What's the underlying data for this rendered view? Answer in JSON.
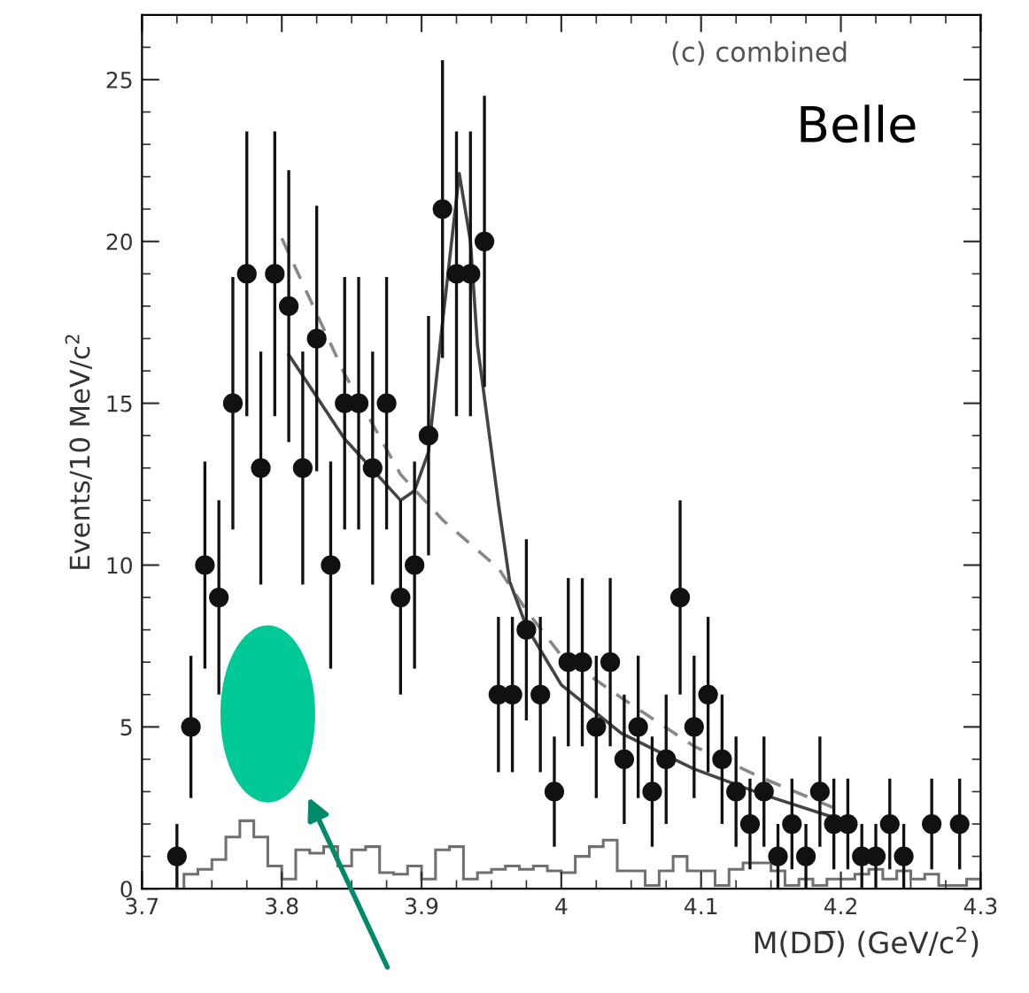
{
  "chart_data": {
    "type": "scatter",
    "xlabel": "M(DD̅) (GeV/c$^{2}$)",
    "ylabel": "Events/10 MeV/c$^{2}$",
    "annotations": [
      "(c) combined",
      "Belle"
    ],
    "xlim": [
      3.7,
      4.3
    ],
    "ylim": [
      0,
      27
    ],
    "xticks": [
      3.7,
      3.8,
      3.9,
      4,
      4.1,
      4.2,
      4.3
    ],
    "yticks": [
      0,
      5,
      10,
      15,
      20,
      25
    ],
    "grid": false,
    "legend": false,
    "series": [
      {
        "type": "histogram",
        "color": "#707070",
        "bins": [
          3.73,
          3.74,
          3.75,
          3.76,
          3.77,
          3.78,
          3.79,
          3.8,
          3.81,
          3.82,
          3.83,
          3.84,
          3.85,
          3.86,
          3.87,
          3.88,
          3.89,
          3.9,
          3.91,
          3.92,
          3.93,
          3.94,
          3.95,
          3.96,
          3.97,
          3.98,
          3.99,
          4.0,
          4.01,
          4.02,
          4.03,
          4.04,
          4.05,
          4.06,
          4.07,
          4.08,
          4.09,
          4.1,
          4.11,
          4.12,
          4.13,
          4.14,
          4.15,
          4.16,
          4.17,
          4.18,
          4.19,
          4.2,
          4.21,
          4.22,
          4.23,
          4.24,
          4.25,
          4.26,
          4.27,
          4.28,
          4.29,
          4.3
        ],
        "values": [
          0.45,
          0.6,
          0.9,
          1.6,
          2.1,
          1.6,
          0.7,
          0.3,
          1.2,
          1.1,
          1.3,
          0.7,
          1.2,
          1.3,
          0.5,
          0.45,
          0.7,
          0.3,
          1.2,
          1.3,
          0.3,
          0.5,
          0.6,
          0.7,
          0.6,
          0.7,
          0.55,
          0.5,
          1.0,
          1.3,
          1.5,
          0.55,
          0.55,
          0.1,
          0.55,
          1.0,
          0.55,
          0.55,
          0.1,
          0.6,
          0.8,
          0.8,
          0.55,
          0.1,
          0.3,
          0.1,
          0.3,
          0.3,
          0.45,
          0.6,
          0.3,
          0.55,
          0.3,
          0.45,
          0.1,
          0.1,
          0.3
        ]
      },
      {
        "type": "line",
        "color": "#888888",
        "line_style": "dashed",
        "x": [
          3.8,
          3.845,
          3.885,
          3.915,
          3.955,
          3.975,
          4.0,
          4.043,
          4.095,
          4.145,
          4.195
        ],
        "values": [
          20.1,
          15.9,
          12.8,
          11.4,
          9.9,
          8.6,
          7.2,
          5.9,
          4.4,
          3.4,
          2.5
        ]
      },
      {
        "type": "line",
        "color": "#444444",
        "line_style": "solid",
        "x": [
          3.805,
          3.845,
          3.885,
          3.895,
          3.905,
          3.915,
          3.927,
          3.935,
          3.94,
          3.955,
          3.963,
          3.975,
          4.0,
          4.043,
          4.095,
          4.145,
          4.195
        ],
        "values": [
          16.5,
          13.9,
          12.0,
          12.3,
          13.5,
          17.5,
          22.1,
          20.0,
          16.8,
          11.9,
          9.5,
          8.1,
          6.3,
          4.8,
          3.7,
          2.9,
          2.2
        ]
      },
      {
        "color": "#111111",
        "marker": "circle",
        "x": [
          3.725,
          3.735,
          3.745,
          3.755,
          3.765,
          3.775,
          3.785,
          3.795,
          3.805,
          3.815,
          3.825,
          3.835,
          3.845,
          3.855,
          3.865,
          3.875,
          3.885,
          3.895,
          3.905,
          3.915,
          3.925,
          3.935,
          3.945,
          3.955,
          3.965,
          3.975,
          3.985,
          3.995,
          4.005,
          4.015,
          4.025,
          4.035,
          4.045,
          4.055,
          4.065,
          4.075,
          4.085,
          4.095,
          4.105,
          4.115,
          4.125,
          4.135,
          4.145,
          4.155,
          4.165,
          4.175,
          4.185,
          4.195,
          4.205,
          4.215,
          4.225,
          4.235,
          4.245,
          4.265,
          4.285
        ],
        "values": [
          1,
          5,
          10,
          9,
          15,
          19,
          13,
          19,
          18,
          13,
          17,
          10,
          15,
          15,
          13,
          15,
          9,
          10,
          14,
          21,
          19,
          19,
          20,
          6,
          6,
          8,
          6,
          3,
          7,
          7,
          5,
          7,
          4,
          5,
          3,
          4,
          9,
          5,
          6,
          4,
          3,
          2,
          3,
          1,
          2,
          1,
          3,
          2,
          2,
          1,
          1,
          2,
          1,
          2,
          2
        ],
        "errors": [
          1,
          2.2,
          3.2,
          3,
          3.9,
          4.4,
          3.6,
          4.4,
          4.2,
          3.6,
          4.1,
          3.2,
          3.9,
          3.9,
          3.6,
          3.9,
          3,
          3.2,
          3.7,
          4.6,
          4.4,
          4.4,
          4.5,
          2.4,
          2.4,
          2.8,
          2.4,
          1.7,
          2.6,
          2.6,
          2.2,
          2.6,
          2,
          2.2,
          1.7,
          2,
          3,
          2.2,
          2.4,
          2,
          1.7,
          1.4,
          1.7,
          1,
          1.4,
          1,
          1.7,
          1.4,
          1.4,
          1,
          1,
          1.4,
          1,
          1.4,
          1.4
        ]
      }
    ]
  }
}
